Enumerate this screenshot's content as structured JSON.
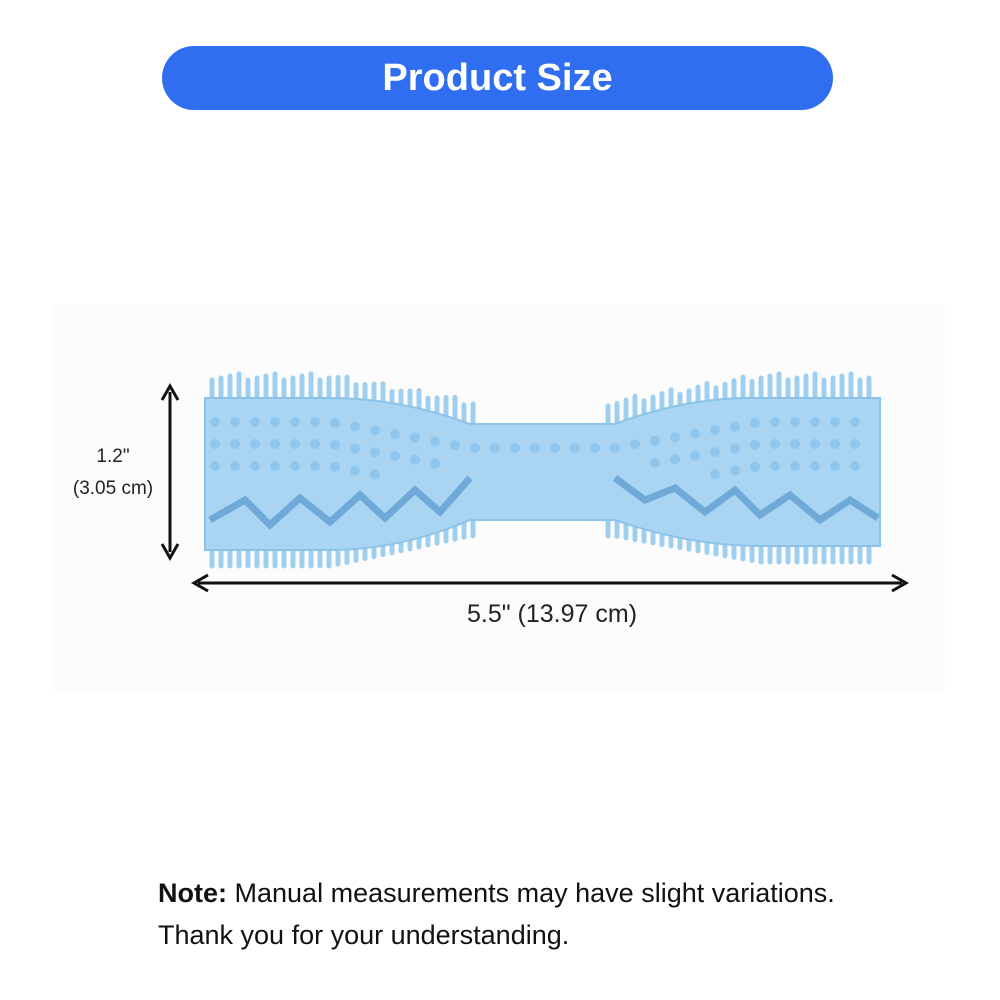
{
  "header": {
    "title": "Product Size"
  },
  "dimensions": {
    "height": "1.2\"",
    "height_metric": "(3.05 cm)",
    "length": "5.5\" (13.97 cm)"
  },
  "note": {
    "label": "Note:",
    "text": "Manual measurements may have slight variations. Thank you for your understanding."
  }
}
